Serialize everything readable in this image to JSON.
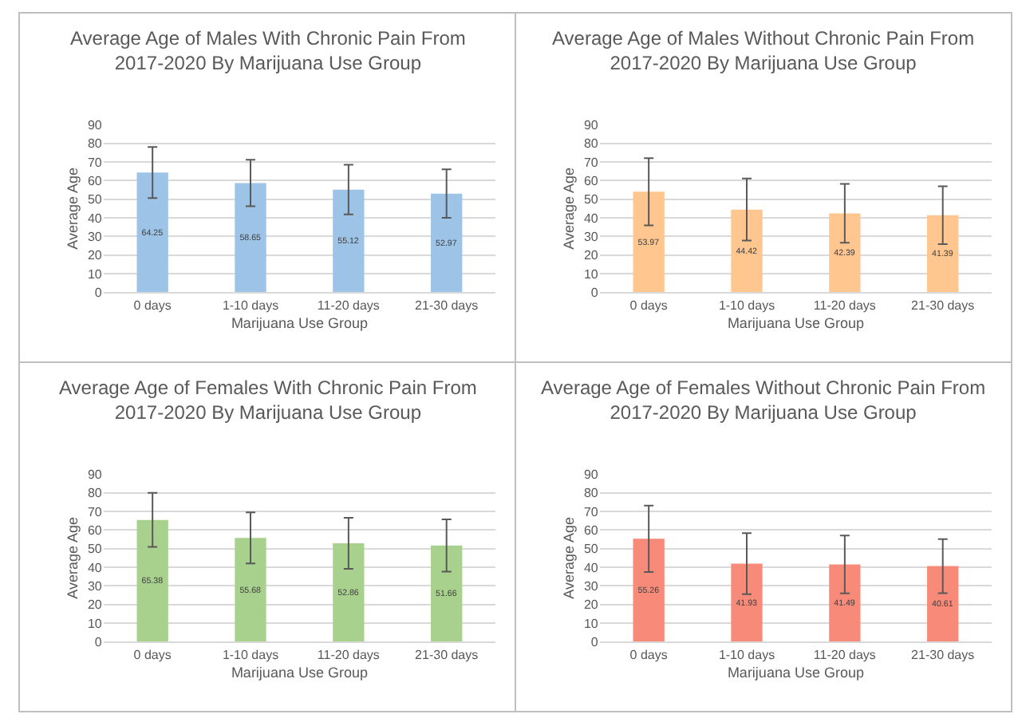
{
  "chart_data": [
    {
      "type": "bar",
      "title": "Average Age of Males With Chronic Pain From 2017-2020 By Marijuana Use Group",
      "xlabel": "Marijuana Use Group",
      "ylabel": "Average Age",
      "categories": [
        "0 days",
        "1-10 days",
        "11-20 days",
        "21-30 days"
      ],
      "values": [
        64.25,
        58.65,
        55.12,
        52.97
      ],
      "errors": [
        13.7,
        12.5,
        13.3,
        13
      ],
      "color": "#9dc3e6",
      "ylim": [
        0,
        90
      ],
      "yticks": [
        0,
        10,
        20,
        30,
        40,
        50,
        60,
        70,
        80,
        90
      ],
      "grid": "y",
      "data_labels": true
    },
    {
      "type": "bar",
      "title": "Average Age of Males Without Chronic Pain From 2017-2020 By Marijuana Use Group",
      "xlabel": "Marijuana Use Group",
      "ylabel": "Average Age",
      "categories": [
        "0 days",
        "1-10 days",
        "11-20 days",
        "21-30 days"
      ],
      "values": [
        53.97,
        44.42,
        42.39,
        41.39
      ],
      "errors": [
        18,
        16.6,
        15.8,
        15.5
      ],
      "color": "#ffc68f",
      "ylim": [
        0,
        90
      ],
      "yticks": [
        0,
        10,
        20,
        30,
        40,
        50,
        60,
        70,
        80,
        90
      ],
      "grid": "y",
      "data_labels": true
    },
    {
      "type": "bar",
      "title": "Average Age of Females With Chronic Pain From 2017-2020 By Marijuana Use Group",
      "xlabel": "Marijuana Use Group",
      "ylabel": "Average Age",
      "categories": [
        "0 days",
        "1-10 days",
        "11-20 days",
        "21-30 days"
      ],
      "values": [
        65.38,
        55.68,
        52.86,
        51.66
      ],
      "errors": [
        14.5,
        13.7,
        13.7,
        14
      ],
      "color": "#a9d18e",
      "ylim": [
        0,
        90
      ],
      "yticks": [
        0,
        10,
        20,
        30,
        40,
        50,
        60,
        70,
        80,
        90
      ],
      "grid": "y",
      "data_labels": true
    },
    {
      "type": "bar",
      "title": "Average Age of Females Without Chronic Pain From 2017-2020 By Marijuana Use Group",
      "xlabel": "Marijuana Use Group",
      "ylabel": "Average Age",
      "categories": [
        "0 days",
        "1-10 days",
        "11-20 days",
        "21-30 days"
      ],
      "values": [
        55.26,
        41.93,
        41.49,
        40.61
      ],
      "errors": [
        17.8,
        16.4,
        15.5,
        14.5
      ],
      "color": "#f88a7a",
      "ylim": [
        0,
        90
      ],
      "yticks": [
        0,
        10,
        20,
        30,
        40,
        50,
        60,
        70,
        80,
        90
      ],
      "grid": "y",
      "data_labels": true
    }
  ]
}
